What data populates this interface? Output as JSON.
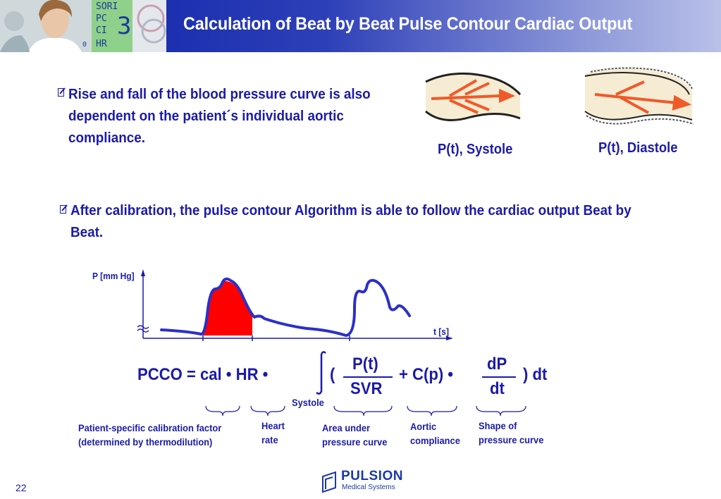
{
  "header": {
    "title": "Calculation of Beat by Beat Pulse Contour Cardiac Output",
    "monitor_lines": [
      "SORI",
      "PC",
      "CI",
      "HR",
      "0"
    ],
    "monitor_digit": "3"
  },
  "bullets": [
    "Rise and fall of the blood pressure curve is also dependent on the patient´s individual aortic compliance.",
    "After calibration, the pulse contour Algorithm is able to follow the cardiac output Beat by Beat."
  ],
  "vessel_labels": {
    "systole": "P(t), Systole",
    "diastole": "P(t), Diastole"
  },
  "graph": {
    "y_label": "P [mm Hg]",
    "x_label": "t [s]"
  },
  "equation": {
    "lhs": "PCCO = cal • HR •",
    "open_paren": "(",
    "frac1_num": "P(t)",
    "frac1_den": "SVR",
    "middle": "+ C(p) •",
    "frac2_num": "dP",
    "frac2_den": "dt",
    "close": ") dt",
    "integral_limit": "Systole"
  },
  "annotations": {
    "calibration": [
      "Patient-specific calibration factor",
      "(determined by thermodilution)"
    ],
    "heart_rate": [
      "Heart",
      "rate"
    ],
    "area": [
      "Area under",
      "pressure curve"
    ],
    "compliance": [
      "Aortic",
      "compliance"
    ],
    "shape": [
      "Shape of",
      "pressure curve"
    ]
  },
  "logo": {
    "name": "PULSION",
    "sub": "Medical Systems"
  },
  "page_number": "22",
  "colors": {
    "text_blue": "#1b1ba8",
    "header_dark": "#0a1fa8",
    "curve_fill": "#ff0000",
    "arrow_orange": "#f05a28"
  }
}
